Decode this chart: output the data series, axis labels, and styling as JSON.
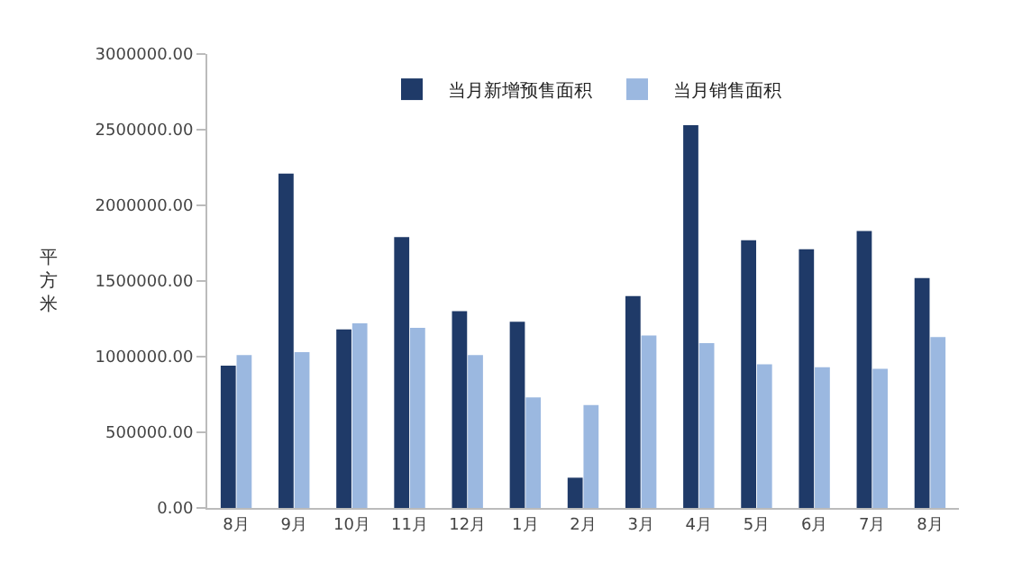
{
  "chart_data": {
    "type": "bar",
    "ylabel": "平方米",
    "categories": [
      "8月",
      "9月",
      "10月",
      "11月",
      "12月",
      "1月",
      "2月",
      "3月",
      "4月",
      "5月",
      "6月",
      "7月",
      "8月"
    ],
    "series": [
      {
        "name": "当月新增预售面积",
        "color": "#1f3a68",
        "values": [
          940000,
          2210000,
          1180000,
          1790000,
          1300000,
          1230000,
          200000,
          1400000,
          2530000,
          1770000,
          1710000,
          1830000,
          1520000
        ]
      },
      {
        "name": "当月销售面积",
        "color": "#9bb8e0",
        "values": [
          1010000,
          1030000,
          1220000,
          1190000,
          1010000,
          730000,
          680000,
          1140000,
          1090000,
          950000,
          930000,
          920000,
          1130000
        ]
      }
    ],
    "ylim": [
      0,
      3000000
    ],
    "yticks": [
      {
        "value": 0,
        "label": "0.00"
      },
      {
        "value": 500000,
        "label": "500000.00"
      },
      {
        "value": 1000000,
        "label": "1000000.00"
      },
      {
        "value": 1500000,
        "label": "1500000.00"
      },
      {
        "value": 2000000,
        "label": "2000000.00"
      },
      {
        "value": 2500000,
        "label": "2500000.00"
      },
      {
        "value": 3000000,
        "label": "3000000.00"
      }
    ],
    "legend": "top"
  }
}
